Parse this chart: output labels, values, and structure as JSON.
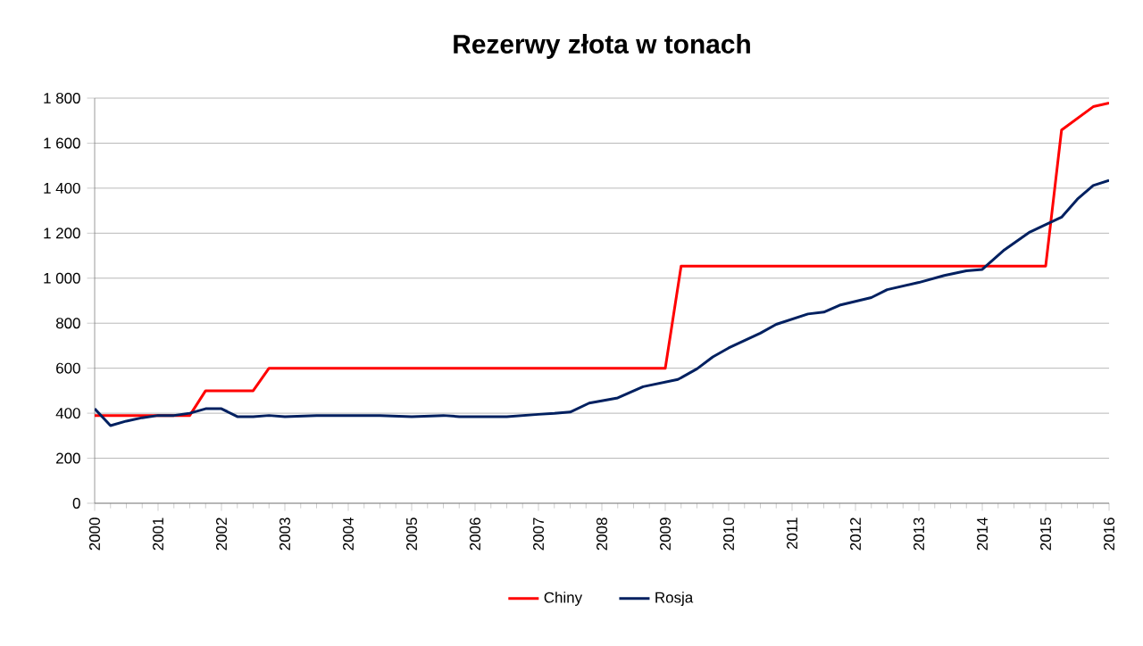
{
  "chart_data": {
    "type": "line",
    "title": "Rezerwy złota w tonach",
    "xlim": [
      2000,
      2016
    ],
    "xticks": [
      2000,
      2001,
      2002,
      2003,
      2004,
      2005,
      2006,
      2007,
      2008,
      2009,
      2010,
      2011,
      2012,
      2013,
      2014,
      2015,
      2016
    ],
    "ylim": [
      0,
      1800
    ],
    "yticks": [
      0,
      200,
      400,
      600,
      800,
      {
        "value": 1000,
        "label": "1 000"
      },
      {
        "value": 1200,
        "label": "1 200"
      },
      {
        "value": 1400,
        "label": "1 400"
      },
      {
        "value": 1600,
        "label": "1 600"
      },
      {
        "value": 1800,
        "label": "1 800"
      }
    ],
    "grid": "y",
    "legend": "bottom",
    "marker": "none",
    "line_style": "solid",
    "series": [
      {
        "name": "Chiny",
        "color": "#ff0000",
        "x": [
          2000,
          2001.5,
          2001.75,
          2002.5,
          2002.75,
          2009,
          2009.25,
          2015,
          2015.25,
          2015.75,
          2016
        ],
        "values": [
          390,
          390,
          500,
          500,
          600,
          600,
          1054,
          1054,
          1658,
          1762,
          1778
        ]
      },
      {
        "name": "Rosja",
        "color": "#002060",
        "x": [
          2000,
          2000.25,
          2000.5,
          2000.75,
          2001,
          2001.25,
          2001.5,
          2001.75,
          2002,
          2002.25,
          2002.5,
          2002.75,
          2003,
          2003.5,
          2004,
          2004.5,
          2005,
          2005.5,
          2005.75,
          2006,
          2006.5,
          2007,
          2007.25,
          2007.5,
          2007.8,
          2008.25,
          2008.65,
          2009.2,
          2009.5,
          2009.75,
          2010,
          2010.5,
          2010.75,
          2011.25,
          2011.5,
          2011.75,
          2012.25,
          2012.5,
          2013,
          2013.4,
          2013.75,
          2014,
          2014.35,
          2014.75,
          2015.25,
          2015.5,
          2015.75,
          2016
        ],
        "values": [
          420,
          345,
          365,
          380,
          390,
          390,
          400,
          420,
          420,
          385,
          385,
          390,
          385,
          390,
          390,
          390,
          385,
          390,
          385,
          385,
          385,
          395,
          399,
          405,
          445,
          468,
          518,
          550,
          597,
          650,
          690,
          756,
          795,
          841,
          849,
          880,
          914,
          949,
          981,
          1012,
          1033,
          1039,
          1126,
          1205,
          1271,
          1351,
          1412,
          1435
        ]
      }
    ]
  }
}
